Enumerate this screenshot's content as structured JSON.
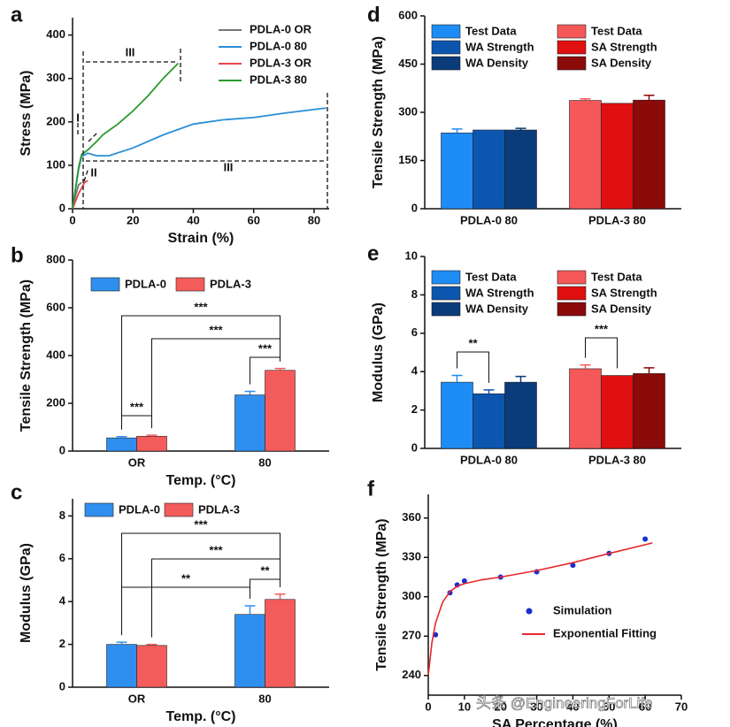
{
  "chart_data": [
    {
      "type": "line",
      "label": "a",
      "x_label": "Strain (%)",
      "y_label": "Stress (MPa)",
      "xlim": [
        0,
        85
      ],
      "xticks": [
        0,
        20,
        40,
        60,
        80
      ],
      "ylim": [
        0,
        440
      ],
      "yticks": [
        0,
        100,
        200,
        300,
        400
      ],
      "annotations": [
        "III",
        "I",
        "II",
        "III"
      ],
      "series": [
        {
          "name": "PDLA-0 OR",
          "color": "#777777",
          "x": [
            0,
            1,
            2,
            3
          ],
          "values": [
            0,
            30,
            55,
            60
          ]
        },
        {
          "name": "PDLA-0 80",
          "color": "#2a8fd6",
          "x": [
            0,
            2,
            3,
            5,
            8,
            12,
            20,
            30,
            40,
            50,
            60,
            70,
            84
          ],
          "values": [
            0,
            90,
            120,
            128,
            122,
            122,
            140,
            170,
            195,
            205,
            210,
            220,
            232
          ]
        },
        {
          "name": "PDLA-3 OR",
          "color": "#e8454a",
          "x": [
            0,
            2,
            4,
            5
          ],
          "values": [
            0,
            35,
            60,
            65
          ]
        },
        {
          "name": "PDLA-3 80",
          "color": "#2a9a2a",
          "x": [
            0,
            2,
            3,
            5,
            8,
            10,
            15,
            20,
            25,
            30,
            35
          ],
          "values": [
            0,
            95,
            125,
            135,
            155,
            170,
            195,
            225,
            260,
            300,
            335
          ]
        }
      ]
    },
    {
      "type": "bar",
      "label": "b",
      "x_label": "Temp. (°C)",
      "y_label": "Tensile Strength (MPa)",
      "categories": [
        "OR",
        "80"
      ],
      "ylim": [
        0,
        800
      ],
      "yticks": [
        0,
        200,
        400,
        600,
        800
      ],
      "annotations": [
        "***",
        "***",
        "***",
        "***"
      ],
      "series": [
        {
          "name": "PDLA-0",
          "color": "#2f8fef",
          "values": [
            55,
            235
          ],
          "errors": [
            5,
            15
          ]
        },
        {
          "name": "PDLA-3",
          "color": "#f45b5b",
          "values": [
            62,
            338
          ],
          "errors": [
            4,
            8
          ]
        }
      ]
    },
    {
      "type": "bar",
      "label": "c",
      "x_label": "Temp. (°C)",
      "y_label": "Modulus (GPa)",
      "categories": [
        "OR",
        "80"
      ],
      "ylim": [
        0,
        8.8
      ],
      "yticks": [
        0,
        2,
        4,
        6,
        8
      ],
      "annotations": [
        "***",
        "***",
        "**",
        "**"
      ],
      "series": [
        {
          "name": "PDLA-0",
          "color": "#2f8fef",
          "values": [
            2.0,
            3.4
          ],
          "errors": [
            0.1,
            0.4
          ]
        },
        {
          "name": "PDLA-3",
          "color": "#f45b5b",
          "values": [
            1.95,
            4.1
          ],
          "errors": [
            0.05,
            0.25
          ]
        }
      ]
    },
    {
      "type": "bar",
      "label": "d",
      "y_label": "Tensile Strength (MPa)",
      "categories": [
        "PDLA-0 80",
        "PDLA-3 80"
      ],
      "ylim": [
        0,
        600
      ],
      "yticks": [
        0,
        150,
        300,
        450,
        600
      ],
      "series": [
        {
          "name": "Test Data",
          "color": "#1e8cf5",
          "values": [
            236,
            null
          ],
          "errors": [
            12,
            null
          ]
        },
        {
          "name": "WA Strength",
          "color": "#0d56b0",
          "values": [
            245,
            null
          ],
          "errors": [
            null,
            null
          ]
        },
        {
          "name": "WA Density",
          "color": "#0a3b7a",
          "values": [
            245,
            null
          ],
          "errors": [
            5,
            null
          ]
        },
        {
          "name": "Test Data",
          "color": "#f55858",
          "values": [
            null,
            337
          ],
          "errors": [
            null,
            5
          ]
        },
        {
          "name": "SA Strength",
          "color": "#e01010",
          "values": [
            null,
            328
          ],
          "errors": [
            null,
            null
          ]
        },
        {
          "name": "SA Density",
          "color": "#8b0a0a",
          "values": [
            null,
            338
          ],
          "errors": [
            null,
            15
          ]
        }
      ]
    },
    {
      "type": "bar",
      "label": "e",
      "y_label": "Modulus (GPa)",
      "categories": [
        "PDLA-0 80",
        "PDLA-3 80"
      ],
      "ylim": [
        0,
        10
      ],
      "yticks": [
        0,
        2,
        4,
        6,
        8,
        10
      ],
      "annotations": [
        "**",
        "***"
      ],
      "series": [
        {
          "name": "Test Data",
          "color": "#1e8cf5",
          "values": [
            3.45,
            null
          ],
          "errors": [
            0.35,
            null
          ]
        },
        {
          "name": "WA Strength",
          "color": "#0d56b0",
          "values": [
            2.85,
            null
          ],
          "errors": [
            0.2,
            null
          ]
        },
        {
          "name": "WA Density",
          "color": "#0a3b7a",
          "values": [
            3.45,
            null
          ],
          "errors": [
            0.3,
            null
          ]
        },
        {
          "name": "Test Data",
          "color": "#f55858",
          "values": [
            null,
            4.15
          ],
          "errors": [
            null,
            0.2
          ]
        },
        {
          "name": "SA Strength",
          "color": "#e01010",
          "values": [
            null,
            3.8
          ],
          "errors": [
            null,
            null
          ]
        },
        {
          "name": "SA Density",
          "color": "#8b0a0a",
          "values": [
            null,
            3.9
          ],
          "errors": [
            null,
            0.3
          ]
        }
      ]
    },
    {
      "type": "scatter",
      "label": "f",
      "x_label": "SA Percentage (%)",
      "y_label": "Tensile Strength (MPa)",
      "xlim": [
        0,
        70
      ],
      "xticks": [
        0,
        10,
        20,
        30,
        40,
        50,
        60,
        70
      ],
      "ylim": [
        225,
        378
      ],
      "yticks": [
        240,
        270,
        300,
        330,
        360
      ],
      "series": [
        {
          "name": "Simulation",
          "type": "scatter",
          "color": "#1a2fd0",
          "x": [
            2,
            6,
            8,
            10,
            20,
            30,
            40,
            50,
            60
          ],
          "values": [
            271,
            303,
            309,
            312,
            315,
            319,
            324,
            333,
            344
          ]
        },
        {
          "name": "Exponential Fitting",
          "type": "line",
          "color": "#e8262a",
          "x": [
            0,
            1,
            2,
            4,
            6,
            8,
            10,
            15,
            20,
            30,
            40,
            50,
            62
          ],
          "values": [
            240,
            265,
            280,
            296,
            304,
            308,
            310,
            313,
            315,
            320,
            326,
            333,
            341
          ]
        }
      ]
    }
  ],
  "watermark": "头条 @EngineeringForLife"
}
